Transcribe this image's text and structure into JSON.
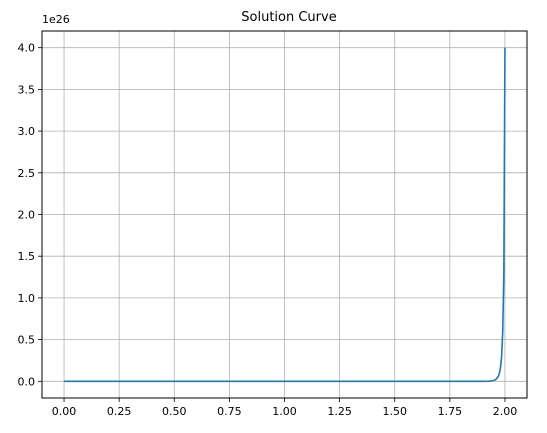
{
  "chart_data": {
    "type": "line",
    "title": "Solution Curve",
    "xlabel": "",
    "ylabel": "",
    "y_offset_label": "1e26",
    "xlim": [
      -0.1,
      2.1
    ],
    "ylim": [
      -0.2,
      4.2
    ],
    "grid": true,
    "x_ticks": [
      0.0,
      0.25,
      0.5,
      0.75,
      1.0,
      1.25,
      1.5,
      1.75,
      2.0
    ],
    "x_tick_labels": [
      "0.00",
      "0.25",
      "0.50",
      "0.75",
      "1.00",
      "1.25",
      "1.50",
      "1.75",
      "2.00"
    ],
    "y_ticks": [
      0.0,
      0.5,
      1.0,
      1.5,
      2.0,
      2.5,
      3.0,
      3.5,
      4.0
    ],
    "y_tick_labels": [
      "0.0",
      "0.5",
      "1.0",
      "1.5",
      "2.0",
      "2.5",
      "3.0",
      "3.5",
      "4.0"
    ],
    "series": [
      {
        "color": "#1f77b4",
        "x": [
          0.0,
          0.25,
          0.5,
          0.75,
          1.0,
          1.25,
          1.5,
          1.75,
          1.9,
          1.93,
          1.95,
          1.96,
          1.97,
          1.975,
          1.98,
          1.985,
          1.99,
          1.995,
          2.0
        ],
        "y": [
          0.0,
          0.0,
          0.0,
          0.0,
          0.0,
          0.0,
          0.0,
          0.0,
          0.0,
          0.002,
          0.01,
          0.025,
          0.06,
          0.1,
          0.17,
          0.3,
          0.6,
          1.3,
          4.0
        ]
      }
    ]
  }
}
